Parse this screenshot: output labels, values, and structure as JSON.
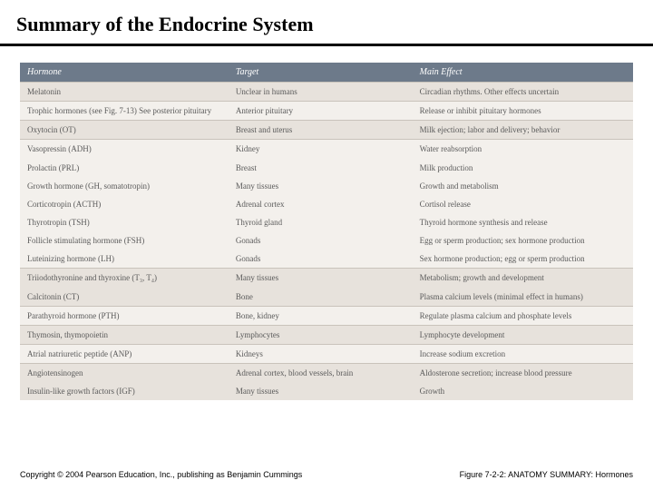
{
  "title": "Summary of the Endocrine System",
  "columns": {
    "h": "Hormone",
    "t": "Target",
    "e": "Main Effect"
  },
  "rows": [
    {
      "h": "Melatonin",
      "t": "Unclear in humans",
      "e": "Circadian rhythms. Other effects uncertain",
      "cls": "striped-a sep"
    },
    {
      "h": "Trophic hormones (see Fig. 7-13) See posterior pituitary",
      "t": "Anterior pituitary",
      "e": "Release or inhibit pituitary hormones",
      "cls": "striped-b sep"
    },
    {
      "h": "Oxytocin (OT)",
      "t": "Breast and uterus",
      "e": "Milk ejection; labor and delivery; behavior",
      "cls": "striped-a sep"
    },
    {
      "h": "Vasopressin (ADH)",
      "t": "Kidney",
      "e": "Water reabsorption",
      "cls": "striped-b sep"
    },
    {
      "h": "Prolactin (PRL)",
      "t": "Breast",
      "e": "Milk production",
      "cls": "striped-b"
    },
    {
      "h": "Growth hormone (GH, somatotropin)",
      "t": "Many tissues",
      "e": "Growth and metabolism",
      "cls": "striped-b"
    },
    {
      "h": "Corticotropin (ACTH)",
      "t": "Adrenal cortex",
      "e": "Cortisol release",
      "cls": "striped-b"
    },
    {
      "h": "Thyrotropin (TSH)",
      "t": "Thyroid gland",
      "e": "Thyroid hormone synthesis and release",
      "cls": "striped-b"
    },
    {
      "h": "Follicle stimulating hormone (FSH)",
      "t": "Gonads",
      "e": "Egg or sperm production; sex hormone production",
      "cls": "striped-b"
    },
    {
      "h": "Luteinizing hormone (LH)",
      "t": "Gonads",
      "e": "Sex hormone production; egg or sperm production",
      "cls": "striped-b"
    },
    {
      "h": "Triiodothyronine and thyroxine (T₃, T₄)",
      "t": "Many tissues",
      "e": "Metabolism; growth and development",
      "cls": "striped-a sep"
    },
    {
      "h": "Calcitonin (CT)",
      "t": "Bone",
      "e": "Plasma calcium levels (minimal effect in humans)",
      "cls": "striped-a"
    },
    {
      "h": "Parathyroid hormone (PTH)",
      "t": "Bone, kidney",
      "e": "Regulate plasma calcium and phosphate levels",
      "cls": "striped-b sep"
    },
    {
      "h": "Thymosin, thymopoietin",
      "t": "Lymphocytes",
      "e": "Lymphocyte development",
      "cls": "striped-a sep"
    },
    {
      "h": "Atrial natriuretic peptide (ANP)",
      "t": "Kidneys",
      "e": "Increase sodium excretion",
      "cls": "striped-b sep"
    },
    {
      "h": "Angiotensinogen",
      "t": "Adrenal cortex, blood vessels, brain",
      "e": "Aldosterone secretion; increase blood pressure",
      "cls": "striped-a sep"
    },
    {
      "h": "Insulin-like growth factors (IGF)",
      "t": "Many tissues",
      "e": "Growth",
      "cls": "striped-a"
    }
  ],
  "footer_left": "Copyright © 2004 Pearson Education, Inc., publishing as Benjamin Cummings",
  "footer_right": "Figure 7-2-2: ANATOMY SUMMARY: Hormones",
  "colors": {
    "header_bg": "#6d7a8a",
    "stripe_a": "#e7e2dc",
    "stripe_b": "#f3f0ec",
    "text": "#5a5a5a"
  }
}
